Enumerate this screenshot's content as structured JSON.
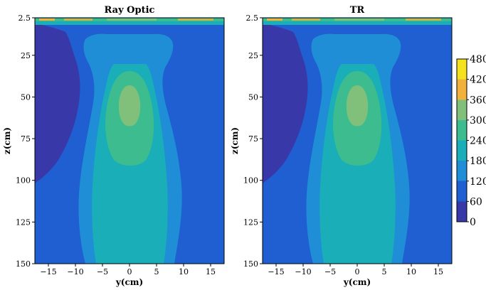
{
  "chart_data": [
    {
      "type": "heatmap",
      "title": "Ray Optic",
      "xlabel": "y(cm)",
      "ylabel": "z(cm)",
      "xlim": [
        -17.5,
        17.5
      ],
      "ylim": [
        150,
        2.5
      ],
      "x_ticks": [
        -15,
        -10,
        -5,
        0,
        5,
        10,
        15
      ],
      "x_tick_labels": [
        "−15",
        "−10",
        "−5",
        "0",
        "5",
        "10",
        "15"
      ],
      "y_ticks": [
        2.5,
        25,
        50,
        75,
        100,
        125,
        150
      ],
      "y_tick_labels": [
        "2.5",
        "25",
        "50",
        "75",
        "100",
        "125",
        "150"
      ],
      "y_axis_inverted": true
    },
    {
      "type": "heatmap",
      "title": "TR",
      "xlabel": "y(cm)",
      "ylabel": "z(cm)",
      "xlim": [
        -17.5,
        17.5
      ],
      "ylim": [
        150,
        2.5
      ],
      "x_ticks": [
        -15,
        -10,
        -5,
        0,
        5,
        10,
        15
      ],
      "x_tick_labels": [
        "−15",
        "−10",
        "−5",
        "0",
        "5",
        "10",
        "15"
      ],
      "y_ticks": [
        2.5,
        25,
        50,
        75,
        100,
        125,
        150
      ],
      "y_tick_labels": [
        "2.5",
        "25",
        "50",
        "75",
        "100",
        "125",
        "150"
      ],
      "y_axis_inverted": true
    }
  ],
  "colorbar": {
    "range": [
      0,
      480
    ],
    "ticks": [
      0,
      60,
      120,
      180,
      240,
      300,
      360,
      420,
      480
    ],
    "tick_labels": [
      "0",
      "60",
      "120",
      "180",
      "240",
      "300",
      "360",
      "420",
      "480"
    ],
    "colors": [
      "#3838a8",
      "#1f5fd1",
      "#1f8ed6",
      "#19aeb8",
      "#3cbc8f",
      "#80c07a",
      "#c9b44b",
      "#f0b23c",
      "#f5e21f"
    ]
  }
}
